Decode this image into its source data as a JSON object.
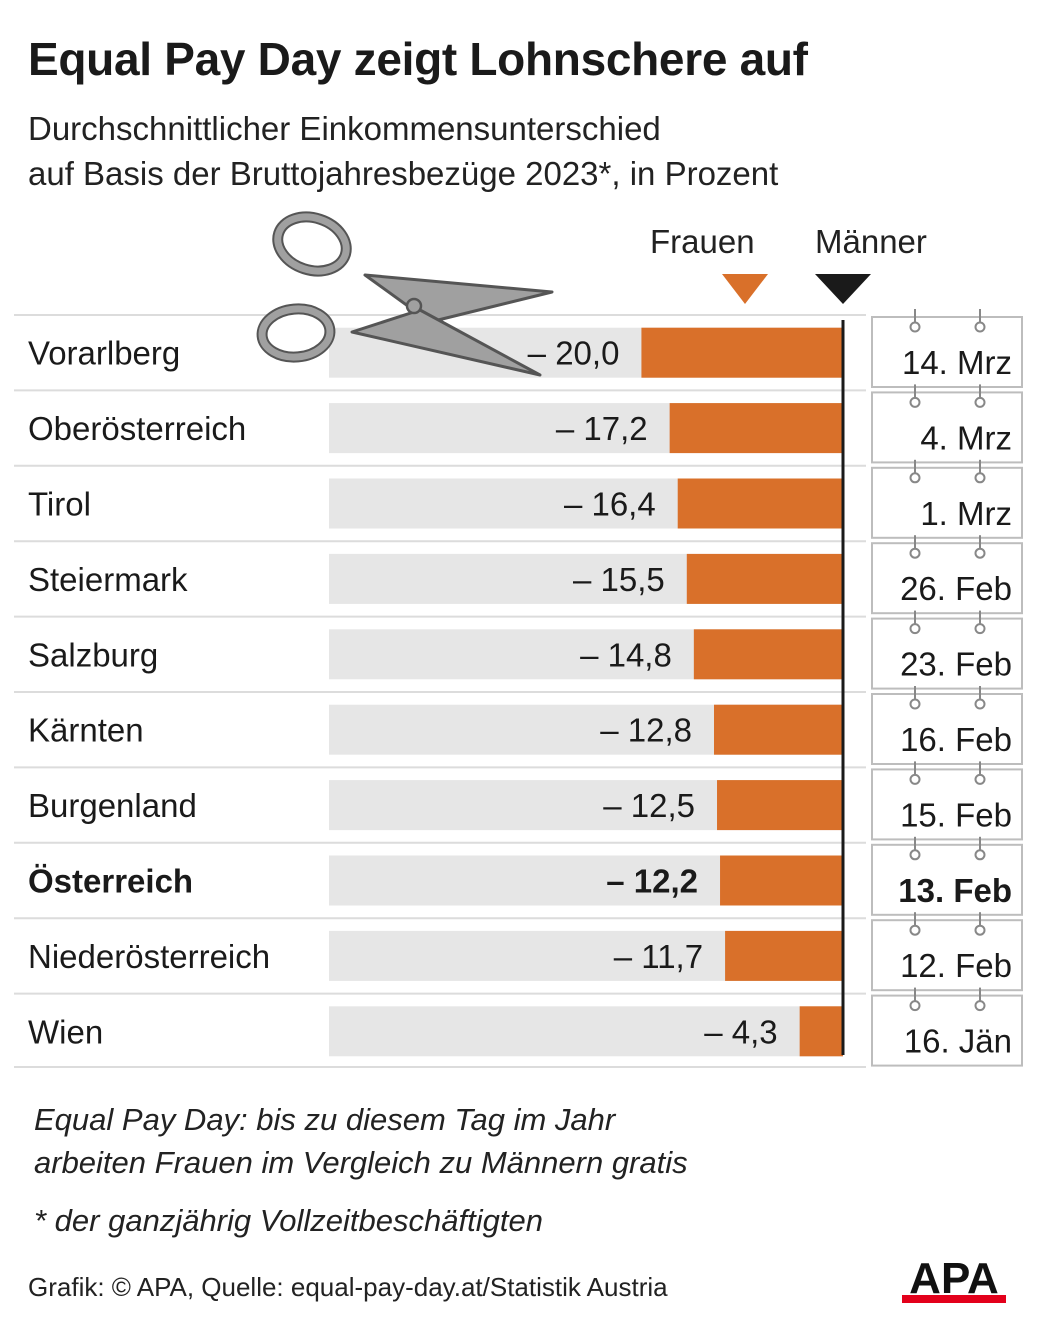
{
  "header": {
    "title": "Equal Pay Day zeigt Lohnschere auf",
    "subtitle_line1": "Durchschnittlicher Einkommensunterschied",
    "subtitle_line2": "auf Basis der Bruttojahresbezüge 2023*, in Prozent"
  },
  "legend": {
    "women_label": "Frauen",
    "men_label": "Männer",
    "women_color": "#d9702a",
    "men_color": "#1a1a1a"
  },
  "chart_data": {
    "type": "bar",
    "orientation": "horizontal",
    "title": "Equal Pay Day zeigt Lohnschere auf",
    "unit": "Prozent",
    "xlim": [
      -51,
      0
    ],
    "categories": [
      "Vorarlberg",
      "Oberösterreich",
      "Tirol",
      "Steiermark",
      "Salzburg",
      "Kärnten",
      "Burgenland",
      "Österreich",
      "Niederösterreich",
      "Wien"
    ],
    "values": [
      -20.0,
      -17.2,
      -16.4,
      -15.5,
      -14.8,
      -12.8,
      -12.5,
      -12.2,
      -11.7,
      -4.3
    ],
    "value_labels": [
      "– 20,0",
      "– 17,2",
      "– 16,4",
      "– 15,5",
      "– 14,8",
      "– 12,8",
      "– 12,5",
      "– 12,2",
      "– 11,7",
      "– 4,3"
    ],
    "equal_pay_days": [
      "14. Mrz",
      "4. Mrz",
      "1. Mrz",
      "26. Feb",
      "23. Feb",
      "16. Feb",
      "15. Feb",
      "13. Feb",
      "12. Feb",
      "16. Jän"
    ],
    "highlight": "Österreich",
    "bar_color": "#d9702a",
    "background_bar_color": "#e6e6e6",
    "axis_color": "#1a1a1a"
  },
  "footer": {
    "note_line1": "Equal Pay Day: bis zu diesem Tag im Jahr",
    "note_line2": "arbeiten Frauen im Vergleich zu Männern gratis",
    "asterisk_note": "* der ganzjährig Vollzeitbeschäftigten",
    "source": "Grafik: © APA, Quelle: equal-pay-day.at/Statistik Austria",
    "logo_text": "APA",
    "logo_accent_color": "#e3001b"
  }
}
